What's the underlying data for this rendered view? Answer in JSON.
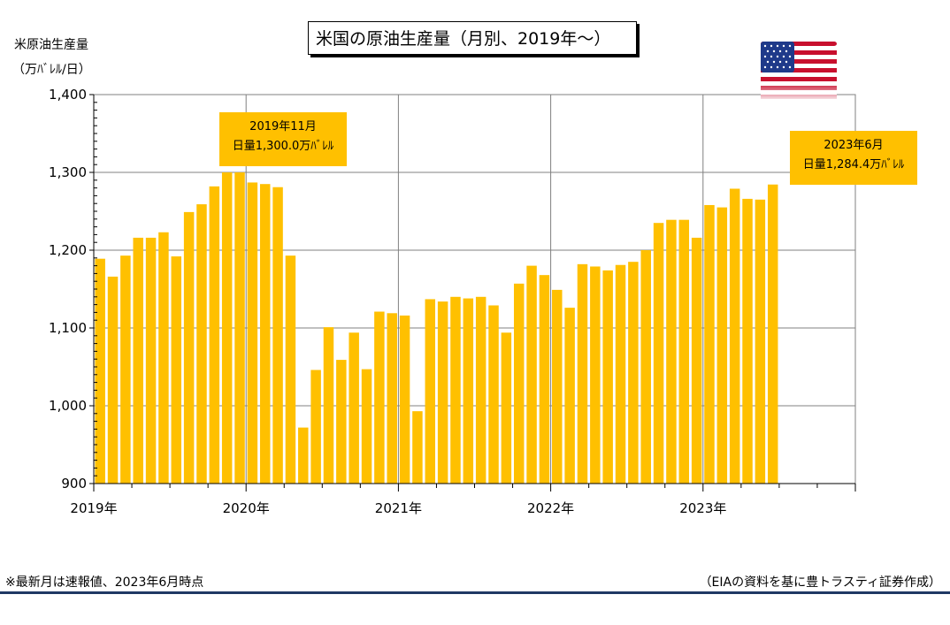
{
  "chart_title": "米国の原油生産量（月別、2019年～）",
  "y_axis_label_line1": "米原油生産量",
  "y_axis_label_line2": "（万ﾊﾞﾚﾙ/日）",
  "callouts": [
    {
      "line1": "2019年11月",
      "line2": "日量1,300.0万ﾊﾞﾚﾙ"
    },
    {
      "line1": "2023年6月",
      "line2": "日量1,284.4万ﾊﾞﾚﾙ"
    }
  ],
  "footer_left": "※最新月は速報値、2023年6月時点",
  "footer_right": "（EIAの資料を基に豊トラスティ証券作成）",
  "flag_icon": "us-flag-icon",
  "colors": {
    "bar": "#ffc000",
    "grid": "#808080",
    "footer_line": "#1f3864"
  },
  "chart_data": {
    "type": "bar",
    "ylim": [
      900,
      1400
    ],
    "yticks": [
      900,
      1000,
      1100,
      1200,
      1300,
      1400
    ],
    "ytick_labels": [
      "900",
      "1,000",
      "1,100",
      "1,200",
      "1,300",
      "1,400"
    ],
    "year_labels": [
      "2019年",
      "2020年",
      "2021年",
      "2022年",
      "2023年"
    ],
    "x_months_total": 60,
    "grid": true,
    "categories": [
      "2019-01",
      "2019-02",
      "2019-03",
      "2019-04",
      "2019-05",
      "2019-06",
      "2019-07",
      "2019-08",
      "2019-09",
      "2019-10",
      "2019-11",
      "2019-12",
      "2020-01",
      "2020-02",
      "2020-03",
      "2020-04",
      "2020-05",
      "2020-06",
      "2020-07",
      "2020-08",
      "2020-09",
      "2020-10",
      "2020-11",
      "2020-12",
      "2021-01",
      "2021-02",
      "2021-03",
      "2021-04",
      "2021-05",
      "2021-06",
      "2021-07",
      "2021-08",
      "2021-09",
      "2021-10",
      "2021-11",
      "2021-12",
      "2022-01",
      "2022-02",
      "2022-03",
      "2022-04",
      "2022-05",
      "2022-06",
      "2022-07",
      "2022-08",
      "2022-09",
      "2022-10",
      "2022-11",
      "2022-12",
      "2023-01",
      "2023-02",
      "2023-03",
      "2023-04",
      "2023-05",
      "2023-06"
    ],
    "values": [
      1189,
      1166,
      1193,
      1216,
      1216,
      1223,
      1192,
      1249,
      1259,
      1282,
      1300,
      1300,
      1287,
      1285,
      1281,
      1193,
      972,
      1046,
      1101,
      1059,
      1094,
      1047,
      1121,
      1119,
      1116,
      993,
      1137,
      1134,
      1140,
      1138,
      1140,
      1129,
      1094,
      1157,
      1180,
      1168,
      1149,
      1126,
      1182,
      1179,
      1174,
      1181,
      1185,
      1200,
      1235,
      1239,
      1239,
      1216,
      1258,
      1255,
      1279,
      1266,
      1265,
      1284.4
    ]
  }
}
